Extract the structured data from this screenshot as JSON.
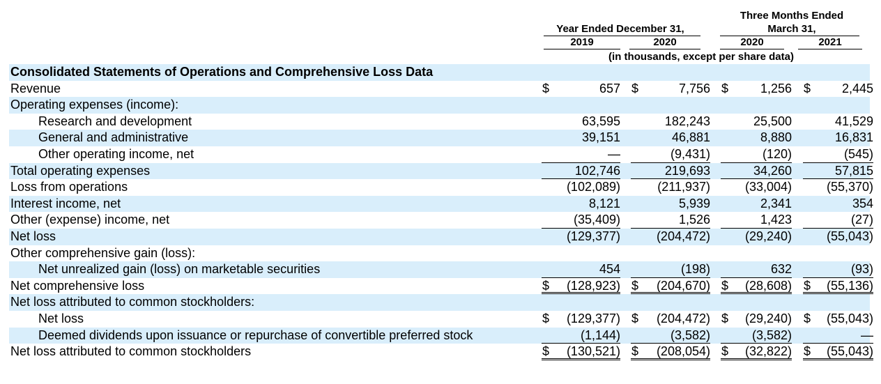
{
  "header": {
    "three_months_ended": "Three Months Ended",
    "march_31": "March 31,",
    "year_ended": "Year Ended December 31,",
    "years": [
      "2019",
      "2020",
      "2020",
      "2021"
    ],
    "units_note": "(in thousands, except per share data)"
  },
  "rows": [
    {
      "label": "Consolidated Statements of Operations and Comprehensive Loss Data",
      "style": "title",
      "shade": true,
      "indent": false,
      "values": [
        "",
        "",
        "",
        ""
      ]
    },
    {
      "label": "Revenue",
      "shade": false,
      "indent": false,
      "dollar": true,
      "values": [
        "657",
        "7,756",
        "1,256",
        "2,445"
      ]
    },
    {
      "label": "Operating expenses (income):",
      "shade": true,
      "indent": false,
      "values": [
        "",
        "",
        "",
        ""
      ]
    },
    {
      "label": "Research and development",
      "shade": false,
      "indent": true,
      "values": [
        "63,595",
        "182,243",
        "25,500",
        "41,529"
      ]
    },
    {
      "label": "General and administrative",
      "shade": true,
      "indent": true,
      "values": [
        "39,151",
        "46,881",
        "8,880",
        "16,831"
      ]
    },
    {
      "label": "Other operating income, net",
      "shade": false,
      "indent": true,
      "underline": "single",
      "values": [
        "—",
        "(9,431)",
        "(120)",
        "(545)"
      ]
    },
    {
      "label": "Total operating expenses",
      "shade": true,
      "indent": false,
      "underline": "single",
      "values": [
        "102,746",
        "219,693",
        "34,260",
        "57,815"
      ]
    },
    {
      "label": "Loss from operations",
      "shade": false,
      "indent": false,
      "values": [
        "(102,089)",
        "(211,937)",
        "(33,004)",
        "(55,370)"
      ]
    },
    {
      "label": "Interest income, net",
      "shade": true,
      "indent": false,
      "values": [
        "8,121",
        "5,939",
        "2,341",
        "354"
      ]
    },
    {
      "label": "Other (expense) income, net",
      "shade": false,
      "indent": false,
      "underline": "single",
      "values": [
        "(35,409)",
        "1,526",
        "1,423",
        "(27)"
      ]
    },
    {
      "label": "Net loss",
      "shade": true,
      "indent": false,
      "values": [
        "(129,377)",
        "(204,472)",
        "(29,240)",
        "(55,043)"
      ]
    },
    {
      "label": "Other comprehensive gain (loss):",
      "shade": false,
      "indent": false,
      "values": [
        "",
        "",
        "",
        ""
      ]
    },
    {
      "label": "Net unrealized gain (loss) on marketable securities",
      "shade": true,
      "indent": true,
      "underline": "single",
      "values": [
        "454",
        "(198)",
        "632",
        "(93)"
      ]
    },
    {
      "label": "Net comprehensive loss",
      "shade": false,
      "indent": false,
      "dollar": true,
      "underline": "double",
      "values": [
        "(128,923)",
        "(204,670)",
        "(28,608)",
        "(55,136)"
      ]
    },
    {
      "label": "Net loss attributed to common stockholders:",
      "shade": true,
      "indent": false,
      "values": [
        "",
        "",
        "",
        ""
      ]
    },
    {
      "label": "Net loss",
      "shade": false,
      "indent": true,
      "dollar": true,
      "values": [
        "(129,377)",
        "(204,472)",
        "(29,240)",
        "(55,043)"
      ]
    },
    {
      "label": "Deemed dividends upon issuance or repurchase of convertible preferred stock",
      "shade": true,
      "indent": true,
      "underline": "single",
      "values": [
        "(1,144)",
        "(3,582)",
        "(3,582)",
        "—"
      ]
    },
    {
      "label": "Net loss attributed to common stockholders",
      "shade": false,
      "indent": false,
      "dollar": true,
      "underline": "double",
      "values": [
        "(130,521)",
        "(208,054)",
        "(32,822)",
        "(55,043)"
      ]
    }
  ]
}
